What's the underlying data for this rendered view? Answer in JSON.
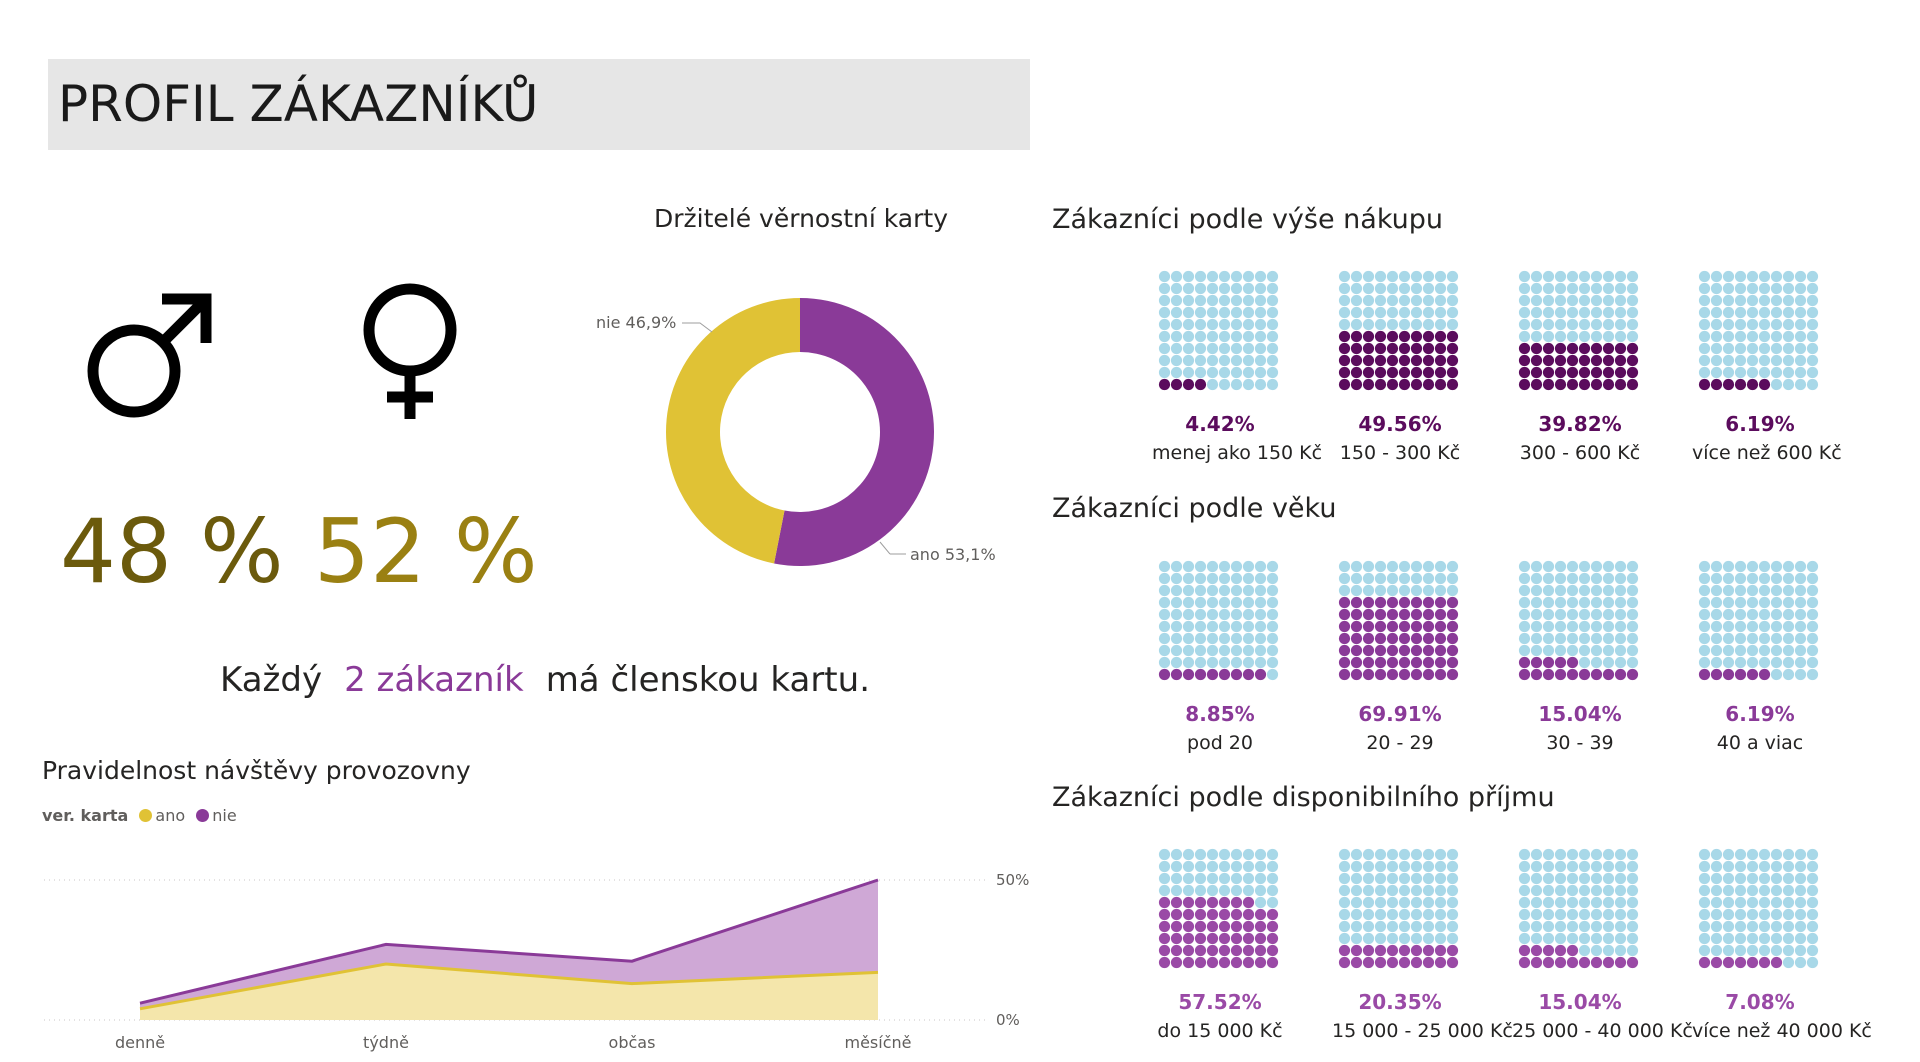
{
  "page": {
    "title": "PROFIL ZÁKAZNÍKŮ"
  },
  "gender": {
    "male_icon": "male-symbol-icon",
    "female_icon": "female-symbol-icon",
    "male_pct": "48 %",
    "female_pct": "52 %"
  },
  "card_sentence": {
    "prefix": "Každý",
    "highlight": "2 zákazník",
    "suffix": "má členskou kartu."
  },
  "loyalty": {
    "title": "Držitelé věrnostní karty",
    "label_no": "nie 46,9%",
    "label_yes": "ano 53,1%"
  },
  "purchase": {
    "title": "Zákazníci podle výše nákupu",
    "items": [
      {
        "pct": "4.42%",
        "label": "menej ako 150 Kč"
      },
      {
        "pct": "49.56%",
        "label": "150 - 300 Kč"
      },
      {
        "pct": "39.82%",
        "label": "300 - 600 Kč"
      },
      {
        "pct": "6.19%",
        "label": "více než 600 Kč"
      }
    ]
  },
  "age": {
    "title": "Zákazníci podle věku",
    "items": [
      {
        "pct": "8.85%",
        "label": "pod 20"
      },
      {
        "pct": "69.91%",
        "label": "20 - 29"
      },
      {
        "pct": "15.04%",
        "label": "30 - 39"
      },
      {
        "pct": "6.19%",
        "label": "40 a viac"
      }
    ]
  },
  "income": {
    "title": "Zákazníci podle disponibilního příjmu",
    "items": [
      {
        "pct": "57.52%",
        "label": "do 15 000 Kč"
      },
      {
        "pct": "20.35%",
        "label": "15 000 - 25 000 Kč"
      },
      {
        "pct": "15.04%",
        "label": "25 000 - 40 000 Kč"
      },
      {
        "pct": "7.08%",
        "label": "více než 40 000 Kč"
      }
    ]
  },
  "visits": {
    "title": "Pravidelnost návštěvy provozovny",
    "legend_title": "ver. karta",
    "legend_yes": "ano",
    "legend_no": "nie"
  },
  "colors": {
    "yes": "#e0c235",
    "no": "#8a3a98",
    "dark_purple": "#5b0c5d",
    "waffle_empty": "#a8d8e8",
    "male_text": "#6b5a0c",
    "female_text": "#9a8012"
  },
  "chart_data": [
    {
      "type": "pie",
      "title": "Držitelé věrnostní karty",
      "categories": [
        "ano",
        "nie"
      ],
      "values": [
        53.1,
        46.9
      ],
      "donut": true
    },
    {
      "type": "area",
      "title": "Pravidelnost návštěvy provozovny",
      "categories": [
        "denně",
        "týdně",
        "občas",
        "měsíčně"
      ],
      "series": [
        {
          "name": "ano",
          "values": [
            4,
            20,
            13,
            17
          ]
        },
        {
          "name": "nie",
          "values": [
            2,
            7,
            8,
            33
          ]
        }
      ],
      "stacked": true,
      "y_ticks": [
        "50%",
        "0%"
      ],
      "ylim": [
        0,
        50
      ],
      "legend": "top-left"
    }
  ]
}
